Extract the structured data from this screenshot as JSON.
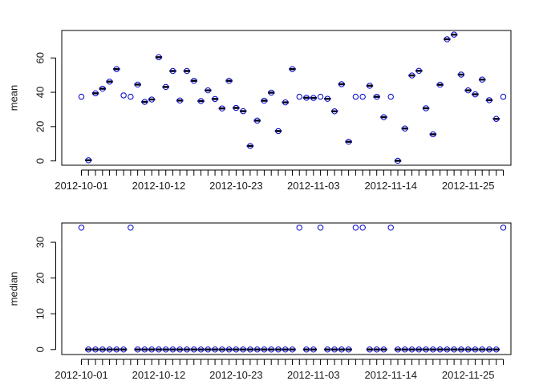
{
  "chart_data": [
    {
      "type": "scatter",
      "title": "",
      "xlabel": "",
      "ylabel": "mean",
      "ylim": [
        -2.5,
        76
      ],
      "y_ticks": [
        0,
        20,
        40,
        60
      ],
      "point_color": "#0000cc",
      "line_marker_color": "#000000",
      "x_tick_labels": [
        "2012-10-01",
        "2012-10-12",
        "2012-10-23",
        "2012-11-03",
        "2012-11-14",
        "2012-11-25"
      ],
      "x": [
        "2012-10-01",
        "2012-10-02",
        "2012-10-03",
        "2012-10-04",
        "2012-10-05",
        "2012-10-06",
        "2012-10-07",
        "2012-10-08",
        "2012-10-09",
        "2012-10-10",
        "2012-10-11",
        "2012-10-12",
        "2012-10-13",
        "2012-10-14",
        "2012-10-15",
        "2012-10-16",
        "2012-10-17",
        "2012-10-18",
        "2012-10-19",
        "2012-10-20",
        "2012-10-21",
        "2012-10-22",
        "2012-10-23",
        "2012-10-24",
        "2012-10-25",
        "2012-10-26",
        "2012-10-27",
        "2012-10-28",
        "2012-10-29",
        "2012-10-30",
        "2012-10-31",
        "2012-11-01",
        "2012-11-02",
        "2012-11-03",
        "2012-11-04",
        "2012-11-05",
        "2012-11-06",
        "2012-11-07",
        "2012-11-08",
        "2012-11-09",
        "2012-11-10",
        "2012-11-11",
        "2012-11-12",
        "2012-11-13",
        "2012-11-14",
        "2012-11-15",
        "2012-11-16",
        "2012-11-17",
        "2012-11-18",
        "2012-11-19",
        "2012-11-20",
        "2012-11-21",
        "2012-11-22",
        "2012-11-23",
        "2012-11-24",
        "2012-11-25",
        "2012-11-26",
        "2012-11-27",
        "2012-11-28",
        "2012-11-29",
        "2012-11-30"
      ],
      "values": [
        37.4,
        0.4,
        39.4,
        42.1,
        46.2,
        53.5,
        38.2,
        37.4,
        44.5,
        34.4,
        35.8,
        60.4,
        43.1,
        52.4,
        35.2,
        52.4,
        46.7,
        34.9,
        41.1,
        36.1,
        30.6,
        46.7,
        30.9,
        29.0,
        8.7,
        23.5,
        35.1,
        39.8,
        17.4,
        34.1,
        53.5,
        37.4,
        36.8,
        36.7,
        37.4,
        36.2,
        28.9,
        44.7,
        11.2,
        37.4,
        37.4,
        43.8,
        37.4,
        25.5,
        37.4,
        0.1,
        18.9,
        49.8,
        52.5,
        30.7,
        15.5,
        44.4,
        70.9,
        73.6,
        50.3,
        41.1,
        38.8,
        47.4,
        35.4,
        24.5,
        37.4
      ],
      "line_marked": [
        false,
        true,
        true,
        true,
        true,
        true,
        false,
        false,
        true,
        true,
        true,
        true,
        true,
        true,
        true,
        true,
        true,
        true,
        true,
        true,
        true,
        true,
        true,
        true,
        true,
        true,
        true,
        true,
        true,
        true,
        true,
        false,
        true,
        true,
        false,
        true,
        true,
        true,
        true,
        false,
        false,
        true,
        true,
        true,
        false,
        true,
        true,
        true,
        true,
        true,
        true,
        true,
        true,
        true,
        true,
        true,
        true,
        true,
        true,
        true,
        false
      ]
    },
    {
      "type": "scatter",
      "title": "",
      "xlabel": "",
      "ylabel": "median",
      "ylim": [
        -1.4,
        35.4
      ],
      "y_ticks": [
        0,
        10,
        20,
        30
      ],
      "point_color": "#0000cc",
      "line_marker_color": "#000000",
      "x_tick_labels": [
        "2012-10-01",
        "2012-10-12",
        "2012-10-23",
        "2012-11-03",
        "2012-11-14",
        "2012-11-25"
      ],
      "x": [
        "2012-10-01",
        "2012-10-02",
        "2012-10-03",
        "2012-10-04",
        "2012-10-05",
        "2012-10-06",
        "2012-10-07",
        "2012-10-08",
        "2012-10-09",
        "2012-10-10",
        "2012-10-11",
        "2012-10-12",
        "2012-10-13",
        "2012-10-14",
        "2012-10-15",
        "2012-10-16",
        "2012-10-17",
        "2012-10-18",
        "2012-10-19",
        "2012-10-20",
        "2012-10-21",
        "2012-10-22",
        "2012-10-23",
        "2012-10-24",
        "2012-10-25",
        "2012-10-26",
        "2012-10-27",
        "2012-10-28",
        "2012-10-29",
        "2012-10-30",
        "2012-10-31",
        "2012-11-01",
        "2012-11-02",
        "2012-11-03",
        "2012-11-04",
        "2012-11-05",
        "2012-11-06",
        "2012-11-07",
        "2012-11-08",
        "2012-11-09",
        "2012-11-10",
        "2012-11-11",
        "2012-11-12",
        "2012-11-13",
        "2012-11-14",
        "2012-11-15",
        "2012-11-16",
        "2012-11-17",
        "2012-11-18",
        "2012-11-19",
        "2012-11-20",
        "2012-11-21",
        "2012-11-22",
        "2012-11-23",
        "2012-11-24",
        "2012-11-25",
        "2012-11-26",
        "2012-11-27",
        "2012-11-28",
        "2012-11-29",
        "2012-11-30"
      ],
      "values": [
        34.1,
        0,
        0,
        0,
        0,
        0,
        0,
        34.1,
        0,
        0,
        0,
        0,
        0,
        0,
        0,
        0,
        0,
        0,
        0,
        0,
        0,
        0,
        0,
        0,
        0,
        0,
        0,
        0,
        0,
        0,
        0,
        34.1,
        0,
        0,
        34.1,
        0,
        0,
        0,
        0,
        34.1,
        34.1,
        0,
        0,
        0,
        34.1,
        0,
        0,
        0,
        0,
        0,
        0,
        0,
        0,
        0,
        0,
        0,
        0,
        0,
        0,
        0,
        34.1
      ],
      "line_marked": [
        false,
        true,
        true,
        true,
        true,
        true,
        true,
        false,
        true,
        true,
        true,
        true,
        true,
        true,
        true,
        true,
        true,
        true,
        true,
        true,
        true,
        true,
        true,
        true,
        true,
        true,
        true,
        true,
        true,
        true,
        true,
        false,
        true,
        true,
        false,
        true,
        true,
        true,
        true,
        false,
        false,
        true,
        true,
        true,
        false,
        true,
        true,
        true,
        true,
        true,
        true,
        true,
        true,
        true,
        true,
        true,
        true,
        true,
        true,
        true,
        false
      ]
    }
  ]
}
